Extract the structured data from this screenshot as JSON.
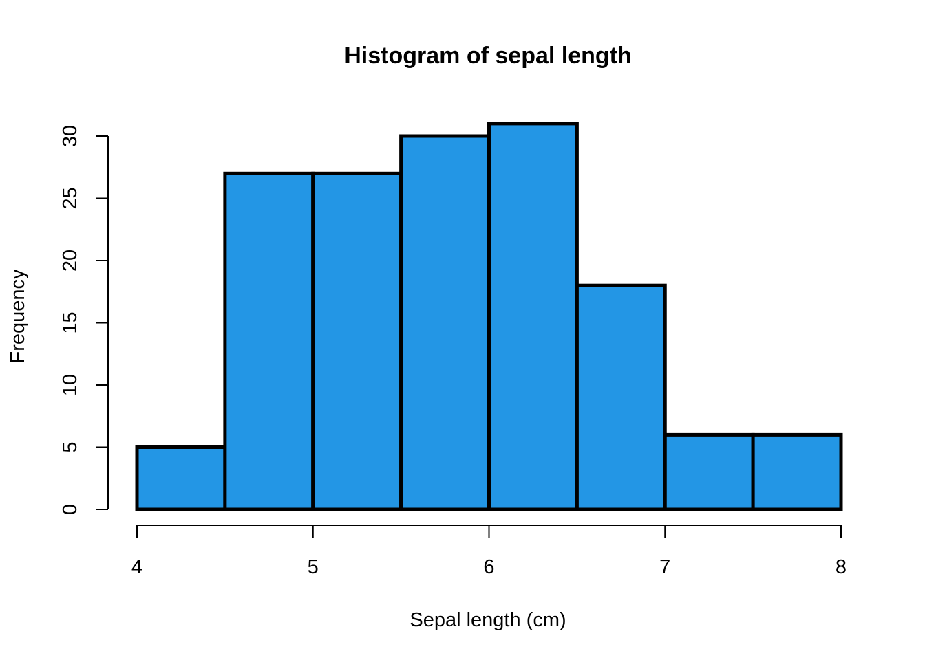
{
  "chart_data": {
    "type": "bar",
    "title": "Histogram of sepal length",
    "xlabel": "Sepal length (cm)",
    "ylabel": "Frequency",
    "bins": [
      {
        "start": 4.0,
        "end": 4.5,
        "count": 5
      },
      {
        "start": 4.5,
        "end": 5.0,
        "count": 27
      },
      {
        "start": 5.0,
        "end": 5.5,
        "count": 27
      },
      {
        "start": 5.5,
        "end": 6.0,
        "count": 30
      },
      {
        "start": 6.0,
        "end": 6.5,
        "count": 31
      },
      {
        "start": 6.5,
        "end": 7.0,
        "count": 18
      },
      {
        "start": 7.0,
        "end": 7.5,
        "count": 6
      },
      {
        "start": 7.5,
        "end": 8.0,
        "count": 6
      }
    ],
    "xlim": [
      4,
      8
    ],
    "ylim": [
      0,
      30
    ],
    "xticks": [
      "4",
      "5",
      "6",
      "7",
      "8"
    ],
    "yticks": [
      "0",
      "5",
      "10",
      "15",
      "20",
      "25",
      "30"
    ],
    "grid": false,
    "colors": {
      "bar_fill": "#2396e5",
      "bar_stroke": "#000000",
      "axis": "#000000"
    }
  }
}
